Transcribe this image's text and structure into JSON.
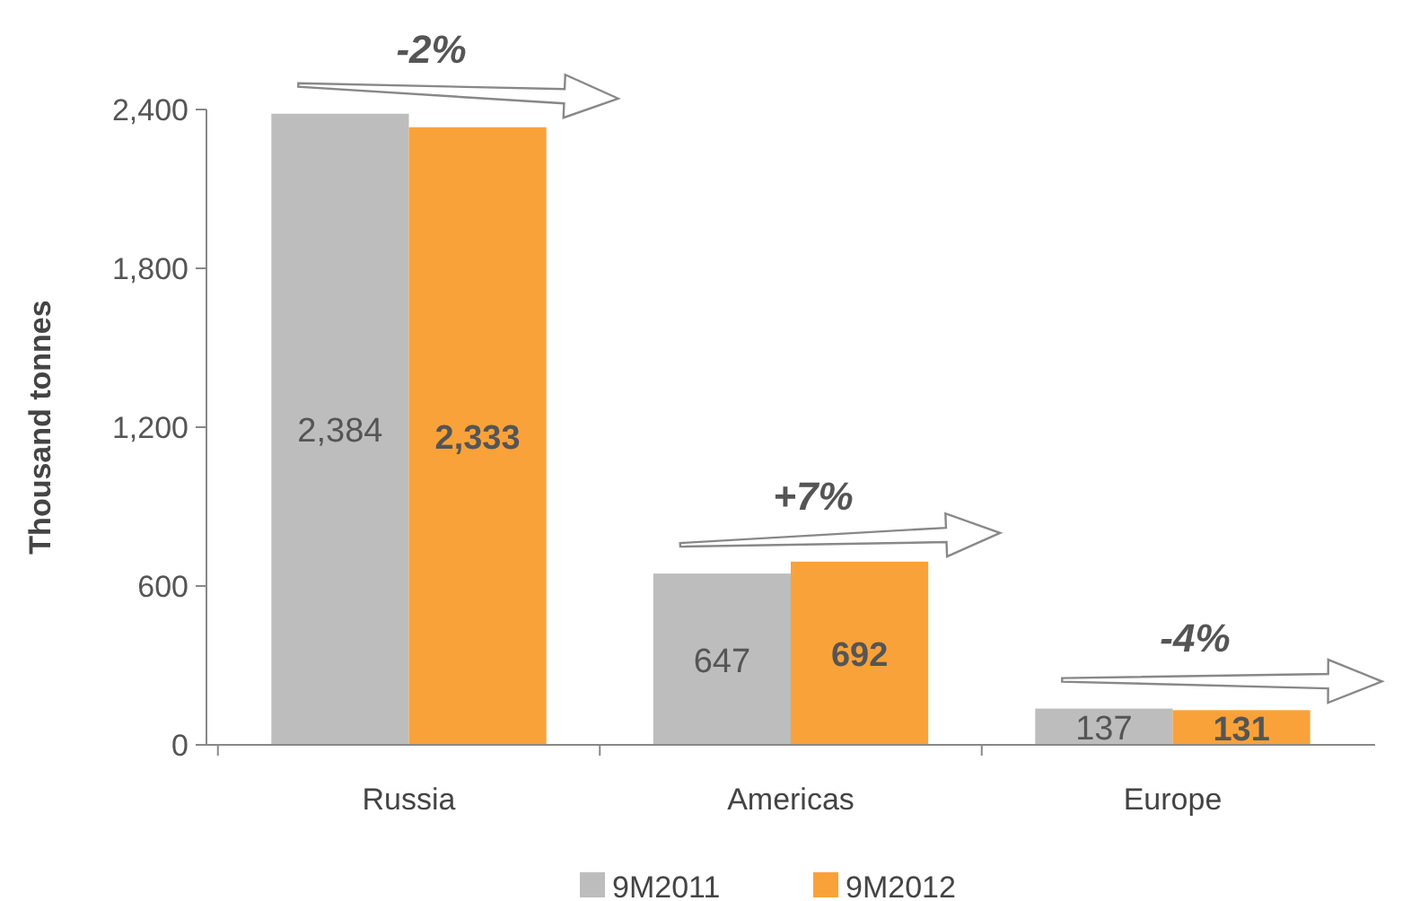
{
  "chart_data": {
    "type": "bar",
    "ylabel": "Thousand tonnes",
    "categories": [
      "Russia",
      "Americas",
      "Europe"
    ],
    "series": [
      {
        "name": "9M2011",
        "color": "#bdbdbd",
        "values": [
          2384,
          647,
          137
        ],
        "value_labels": [
          "2,384",
          "647",
          "137"
        ]
      },
      {
        "name": "9M2012",
        "color": "#f9a23a",
        "values": [
          2333,
          692,
          131
        ],
        "value_labels": [
          "2,333",
          "692",
          "131"
        ]
      }
    ],
    "ylim": [
      0,
      2400
    ],
    "yticks": [
      0,
      {
        "value": 600,
        "label": "600"
      },
      {
        "value": 1200,
        "label": "1,200"
      },
      {
        "value": 1800,
        "label": "1,800"
      },
      {
        "value": 2400,
        "label": "2,400"
      }
    ],
    "legend": "bottom",
    "grid": false,
    "annotations": [
      "-2%",
      "+7%",
      "-4%"
    ]
  }
}
